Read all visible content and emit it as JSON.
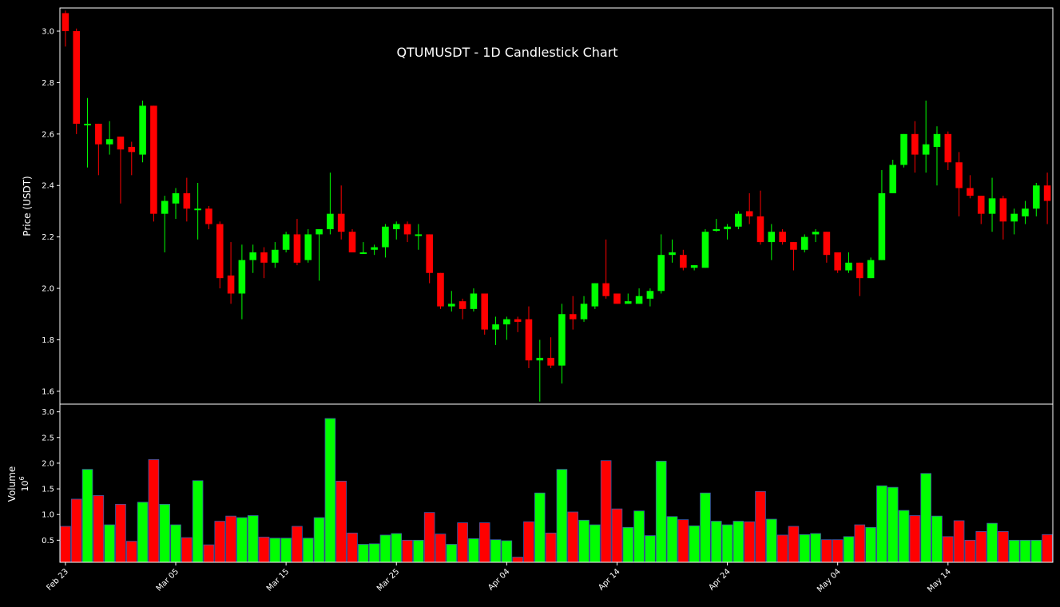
{
  "chart_data": [
    {
      "type": "candlestick",
      "title": "QTUMUSDT - 1D Candlestick Chart",
      "ylabel": "Price (USDT)",
      "ylim": [
        1.55,
        3.09
      ],
      "yticks": [
        "1.6",
        "1.8",
        "2.0",
        "2.2",
        "2.4",
        "2.6",
        "2.8",
        "3.0"
      ],
      "colors": {
        "up": "#00ff00",
        "down": "#ff0000",
        "background": "#000000",
        "axis": "#ffffff"
      },
      "series": [
        {
          "x": "Feb 23",
          "o": 3.07,
          "h": 3.08,
          "l": 2.94,
          "c": 3.0
        },
        {
          "x": "Feb 24",
          "o": 3.0,
          "h": 3.01,
          "l": 2.6,
          "c": 2.64
        },
        {
          "x": "Feb 25",
          "o": 2.64,
          "h": 2.74,
          "l": 2.47,
          "c": 2.64
        },
        {
          "x": "Feb 26",
          "o": 2.64,
          "h": 2.64,
          "l": 2.44,
          "c": 2.56
        },
        {
          "x": "Feb 27",
          "o": 2.56,
          "h": 2.65,
          "l": 2.52,
          "c": 2.58
        },
        {
          "x": "Feb 28",
          "o": 2.59,
          "h": 2.59,
          "l": 2.33,
          "c": 2.54
        },
        {
          "x": "Mar 01",
          "o": 2.55,
          "h": 2.57,
          "l": 2.44,
          "c": 2.53
        },
        {
          "x": "Mar 02",
          "o": 2.52,
          "h": 2.73,
          "l": 2.49,
          "c": 2.71
        },
        {
          "x": "Mar 03",
          "o": 2.71,
          "h": 2.71,
          "l": 2.26,
          "c": 2.29
        },
        {
          "x": "Mar 04",
          "o": 2.29,
          "h": 2.36,
          "l": 2.14,
          "c": 2.34
        },
        {
          "x": "Mar 05",
          "o": 2.33,
          "h": 2.39,
          "l": 2.27,
          "c": 2.37
        },
        {
          "x": "Mar 06",
          "o": 2.37,
          "h": 2.43,
          "l": 2.26,
          "c": 2.31
        },
        {
          "x": "Mar 07",
          "o": 2.31,
          "h": 2.41,
          "l": 2.19,
          "c": 2.31
        },
        {
          "x": "Mar 08",
          "o": 2.31,
          "h": 2.32,
          "l": 2.23,
          "c": 2.25
        },
        {
          "x": "Mar 09",
          "o": 2.25,
          "h": 2.26,
          "l": 2.0,
          "c": 2.04
        },
        {
          "x": "Mar 10",
          "o": 2.05,
          "h": 2.18,
          "l": 1.94,
          "c": 1.98
        },
        {
          "x": "Mar 11",
          "o": 1.98,
          "h": 2.17,
          "l": 1.88,
          "c": 2.11
        },
        {
          "x": "Mar 12",
          "o": 2.11,
          "h": 2.17,
          "l": 2.06,
          "c": 2.14
        },
        {
          "x": "Mar 13",
          "o": 2.14,
          "h": 2.16,
          "l": 2.04,
          "c": 2.1
        },
        {
          "x": "Mar 14",
          "o": 2.1,
          "h": 2.18,
          "l": 2.08,
          "c": 2.15
        },
        {
          "x": "Mar 15",
          "o": 2.15,
          "h": 2.22,
          "l": 2.14,
          "c": 2.21
        },
        {
          "x": "Mar 16",
          "o": 2.21,
          "h": 2.27,
          "l": 2.09,
          "c": 2.1
        },
        {
          "x": "Mar 17",
          "o": 2.11,
          "h": 2.23,
          "l": 2.1,
          "c": 2.21
        },
        {
          "x": "Mar 18",
          "o": 2.21,
          "h": 2.23,
          "l": 2.03,
          "c": 2.23
        },
        {
          "x": "Mar 19",
          "o": 2.23,
          "h": 2.45,
          "l": 2.21,
          "c": 2.29
        },
        {
          "x": "Mar 20",
          "o": 2.29,
          "h": 2.4,
          "l": 2.19,
          "c": 2.22
        },
        {
          "x": "Mar 21",
          "o": 2.22,
          "h": 2.23,
          "l": 2.14,
          "c": 2.14
        },
        {
          "x": "Mar 22",
          "o": 2.14,
          "h": 2.18,
          "l": 2.14,
          "c": 2.14
        },
        {
          "x": "Mar 23",
          "o": 2.15,
          "h": 2.17,
          "l": 2.13,
          "c": 2.16
        },
        {
          "x": "Mar 24",
          "o": 2.16,
          "h": 2.25,
          "l": 2.12,
          "c": 2.24
        },
        {
          "x": "Mar 25",
          "o": 2.23,
          "h": 2.26,
          "l": 2.19,
          "c": 2.25
        },
        {
          "x": "Mar 26",
          "o": 2.25,
          "h": 2.26,
          "l": 2.18,
          "c": 2.21
        },
        {
          "x": "Mar 27",
          "o": 2.21,
          "h": 2.25,
          "l": 2.15,
          "c": 2.21
        },
        {
          "x": "Mar 28",
          "o": 2.21,
          "h": 2.21,
          "l": 2.02,
          "c": 2.06
        },
        {
          "x": "Mar 29",
          "o": 2.06,
          "h": 2.06,
          "l": 1.92,
          "c": 1.93
        },
        {
          "x": "Mar 30",
          "o": 1.93,
          "h": 1.99,
          "l": 1.91,
          "c": 1.94
        },
        {
          "x": "Mar 31",
          "o": 1.95,
          "h": 1.96,
          "l": 1.88,
          "c": 1.92
        },
        {
          "x": "Apr 01",
          "o": 1.92,
          "h": 2.0,
          "l": 1.91,
          "c": 1.98
        },
        {
          "x": "Apr 02",
          "o": 1.98,
          "h": 1.98,
          "l": 1.82,
          "c": 1.84
        },
        {
          "x": "Apr 03",
          "o": 1.84,
          "h": 1.89,
          "l": 1.78,
          "c": 1.86
        },
        {
          "x": "Apr 04",
          "o": 1.86,
          "h": 1.89,
          "l": 1.8,
          "c": 1.88
        },
        {
          "x": "Apr 05",
          "o": 1.88,
          "h": 1.89,
          "l": 1.83,
          "c": 1.87
        },
        {
          "x": "Apr 06",
          "o": 1.88,
          "h": 1.93,
          "l": 1.69,
          "c": 1.72
        },
        {
          "x": "Apr 07",
          "o": 1.72,
          "h": 1.8,
          "l": 1.56,
          "c": 1.73
        },
        {
          "x": "Apr 08",
          "o": 1.73,
          "h": 1.81,
          "l": 1.69,
          "c": 1.7
        },
        {
          "x": "Apr 09",
          "o": 1.7,
          "h": 1.94,
          "l": 1.63,
          "c": 1.9
        },
        {
          "x": "Apr 10",
          "o": 1.9,
          "h": 1.97,
          "l": 1.84,
          "c": 1.88
        },
        {
          "x": "Apr 11",
          "o": 1.88,
          "h": 1.97,
          "l": 1.87,
          "c": 1.94
        },
        {
          "x": "Apr 12",
          "o": 1.93,
          "h": 2.02,
          "l": 1.92,
          "c": 2.02
        },
        {
          "x": "Apr 13",
          "o": 2.02,
          "h": 2.19,
          "l": 1.96,
          "c": 1.97
        },
        {
          "x": "Apr 14",
          "o": 1.98,
          "h": 1.98,
          "l": 1.94,
          "c": 1.94
        },
        {
          "x": "Apr 15",
          "o": 1.94,
          "h": 1.98,
          "l": 1.94,
          "c": 1.95
        },
        {
          "x": "Apr 16",
          "o": 1.94,
          "h": 2.0,
          "l": 1.94,
          "c": 1.97
        },
        {
          "x": "Apr 17",
          "o": 1.96,
          "h": 2.0,
          "l": 1.93,
          "c": 1.99
        },
        {
          "x": "Apr 18",
          "o": 1.99,
          "h": 2.21,
          "l": 1.98,
          "c": 2.13
        },
        {
          "x": "Apr 19",
          "o": 2.13,
          "h": 2.19,
          "l": 2.1,
          "c": 2.14
        },
        {
          "x": "Apr 20",
          "o": 2.13,
          "h": 2.15,
          "l": 2.07,
          "c": 2.08
        },
        {
          "x": "Apr 21",
          "o": 2.08,
          "h": 2.09,
          "l": 2.07,
          "c": 2.09
        },
        {
          "x": "Apr 22",
          "o": 2.08,
          "h": 2.23,
          "l": 2.08,
          "c": 2.22
        },
        {
          "x": "Apr 23",
          "o": 2.23,
          "h": 2.27,
          "l": 2.22,
          "c": 2.23
        },
        {
          "x": "Apr 24",
          "o": 2.23,
          "h": 2.25,
          "l": 2.19,
          "c": 2.24
        },
        {
          "x": "Apr 25",
          "o": 2.24,
          "h": 2.3,
          "l": 2.23,
          "c": 2.29
        },
        {
          "x": "Apr 26",
          "o": 2.3,
          "h": 2.37,
          "l": 2.25,
          "c": 2.28
        },
        {
          "x": "Apr 27",
          "o": 2.28,
          "h": 2.38,
          "l": 2.17,
          "c": 2.18
        },
        {
          "x": "Apr 28",
          "o": 2.18,
          "h": 2.25,
          "l": 2.11,
          "c": 2.22
        },
        {
          "x": "Apr 29",
          "o": 2.22,
          "h": 2.23,
          "l": 2.17,
          "c": 2.18
        },
        {
          "x": "Apr 30",
          "o": 2.18,
          "h": 2.18,
          "l": 2.07,
          "c": 2.15
        },
        {
          "x": "May 01",
          "o": 2.15,
          "h": 2.21,
          "l": 2.14,
          "c": 2.2
        },
        {
          "x": "May 02",
          "o": 2.21,
          "h": 2.23,
          "l": 2.18,
          "c": 2.22
        },
        {
          "x": "May 03",
          "o": 2.22,
          "h": 2.22,
          "l": 2.1,
          "c": 2.13
        },
        {
          "x": "May 04",
          "o": 2.14,
          "h": 2.14,
          "l": 2.06,
          "c": 2.07
        },
        {
          "x": "May 05",
          "o": 2.07,
          "h": 2.14,
          "l": 2.06,
          "c": 2.1
        },
        {
          "x": "May 06",
          "o": 2.1,
          "h": 2.1,
          "l": 1.97,
          "c": 2.04
        },
        {
          "x": "May 07",
          "o": 2.04,
          "h": 2.12,
          "l": 2.04,
          "c": 2.11
        },
        {
          "x": "May 08",
          "o": 2.11,
          "h": 2.46,
          "l": 2.11,
          "c": 2.37
        },
        {
          "x": "May 09",
          "o": 2.37,
          "h": 2.5,
          "l": 2.37,
          "c": 2.48
        },
        {
          "x": "May 10",
          "o": 2.48,
          "h": 2.6,
          "l": 2.47,
          "c": 2.6
        },
        {
          "x": "May 11",
          "o": 2.6,
          "h": 2.65,
          "l": 2.45,
          "c": 2.52
        },
        {
          "x": "May 12",
          "o": 2.52,
          "h": 2.73,
          "l": 2.45,
          "c": 2.56
        },
        {
          "x": "May 13",
          "o": 2.55,
          "h": 2.63,
          "l": 2.4,
          "c": 2.6
        },
        {
          "x": "May 14",
          "o": 2.6,
          "h": 2.61,
          "l": 2.46,
          "c": 2.49
        },
        {
          "x": "May 15",
          "o": 2.49,
          "h": 2.53,
          "l": 2.28,
          "c": 2.39
        },
        {
          "x": "May 16",
          "o": 2.39,
          "h": 2.44,
          "l": 2.35,
          "c": 2.36
        },
        {
          "x": "May 17",
          "o": 2.36,
          "h": 2.36,
          "l": 2.25,
          "c": 2.29
        },
        {
          "x": "May 18",
          "o": 2.29,
          "h": 2.43,
          "l": 2.22,
          "c": 2.35
        },
        {
          "x": "May 19",
          "o": 2.35,
          "h": 2.36,
          "l": 2.19,
          "c": 2.26
        },
        {
          "x": "May 20",
          "o": 2.26,
          "h": 2.31,
          "l": 2.21,
          "c": 2.29
        },
        {
          "x": "May 21",
          "o": 2.28,
          "h": 2.34,
          "l": 2.25,
          "c": 2.31
        },
        {
          "x": "May 22",
          "o": 2.31,
          "h": 2.41,
          "l": 2.28,
          "c": 2.4
        },
        {
          "x": "May 23",
          "o": 2.4,
          "h": 2.45,
          "l": 2.25,
          "c": 2.34
        }
      ]
    },
    {
      "type": "bar",
      "ylabel": "Volume",
      "ylabel_multiplier": "10",
      "ylabel_exponent": "6",
      "ylim": [
        0.07,
        3.15
      ],
      "yticks": [
        "0.5",
        "1.0",
        "1.5",
        "2.0",
        "2.5",
        "3.0"
      ],
      "volumes": [
        0.77,
        1.3,
        1.88,
        1.37,
        0.8,
        1.2,
        0.48,
        1.24,
        2.07,
        1.2,
        0.8,
        0.55,
        1.66,
        0.41,
        0.87,
        0.97,
        0.94,
        0.98,
        0.56,
        0.54,
        0.54,
        0.77,
        0.54,
        0.94,
        2.87,
        1.65,
        0.64,
        0.42,
        0.43,
        0.6,
        0.63,
        0.5,
        0.5,
        1.04,
        0.62,
        0.42,
        0.84,
        0.53,
        0.84,
        0.51,
        0.49,
        0.17,
        0.86,
        1.42,
        0.64,
        1.88,
        1.05,
        0.89,
        0.8,
        2.05,
        1.11,
        0.75,
        1.07,
        0.59,
        2.04,
        0.96,
        0.9,
        0.78,
        1.42,
        0.87,
        0.8,
        0.87,
        0.86,
        1.45,
        0.91,
        0.6,
        0.77,
        0.61,
        0.63,
        0.51,
        0.51,
        0.57,
        0.8,
        0.75,
        1.56,
        1.53,
        1.08,
        0.98,
        1.8,
        0.97,
        0.57,
        0.88,
        0.5,
        0.67,
        0.83,
        0.67,
        0.5,
        0.5,
        0.5,
        0.61
      ],
      "colors": {
        "up": "#00ff00",
        "down": "#ff0000",
        "edge": "#3a5aa8"
      }
    }
  ],
  "x_axis": {
    "tick_labels": [
      "Feb 23",
      "Mar 05",
      "Mar 15",
      "Mar 25",
      "Apr 04",
      "Apr 14",
      "Apr 24",
      "May 04",
      "May 14"
    ],
    "tick_indices": [
      0,
      10,
      20,
      30,
      40,
      50,
      60,
      70,
      80
    ]
  }
}
